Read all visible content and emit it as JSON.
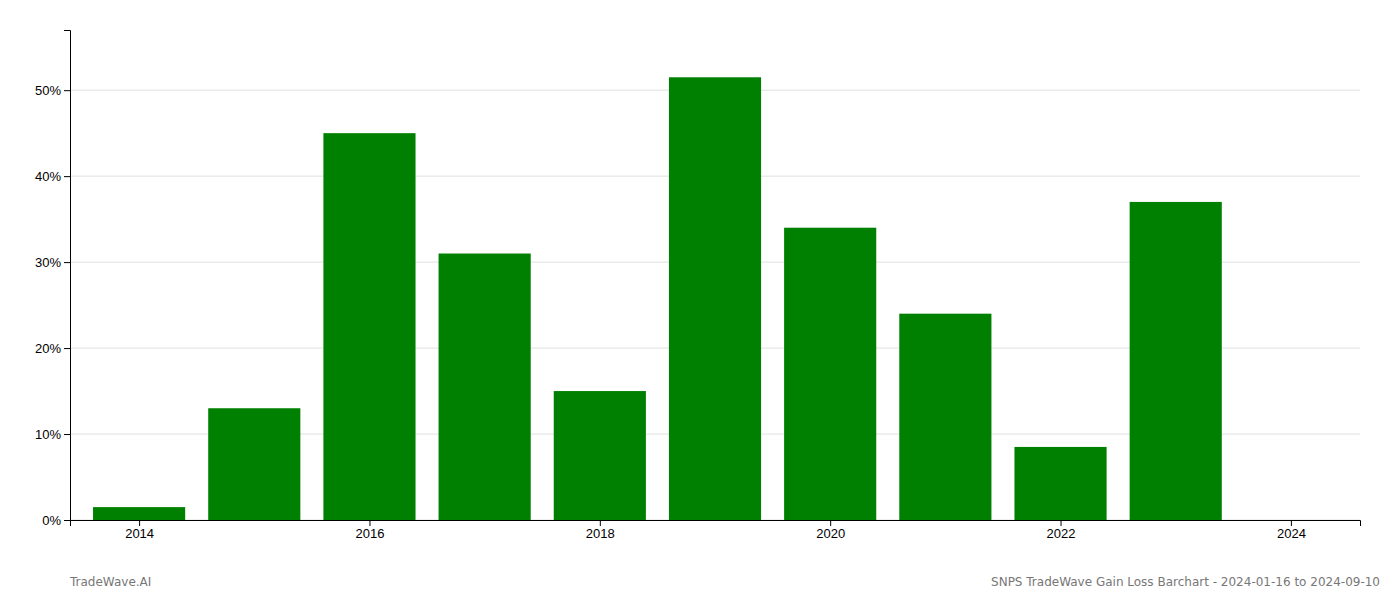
{
  "chart_data": {
    "type": "bar",
    "x": [
      2014,
      2015,
      2016,
      2017,
      2018,
      2019,
      2020,
      2021,
      2022,
      2023
    ],
    "values": [
      1.5,
      13.0,
      45.0,
      31.0,
      15.0,
      51.5,
      34.0,
      24.0,
      8.5,
      37.0
    ],
    "color": "#008000",
    "xlim": [
      2013.4,
      2024.6
    ],
    "xticks": [
      2014,
      2016,
      2018,
      2020,
      2022,
      2024
    ],
    "ylim": [
      0,
      57
    ],
    "yticks": [
      {
        "value": 0,
        "label": "0%"
      },
      {
        "value": 10,
        "label": "10%"
      },
      {
        "value": 20,
        "label": "20%"
      },
      {
        "value": 30,
        "label": "30%"
      },
      {
        "value": 40,
        "label": "40%"
      },
      {
        "value": 50,
        "label": "50%"
      }
    ],
    "grid": true,
    "annotations": [
      "TradeWave.AI",
      "SNPS TradeWave Gain Loss Barchart - 2024-01-16 to 2024-09-10"
    ]
  }
}
